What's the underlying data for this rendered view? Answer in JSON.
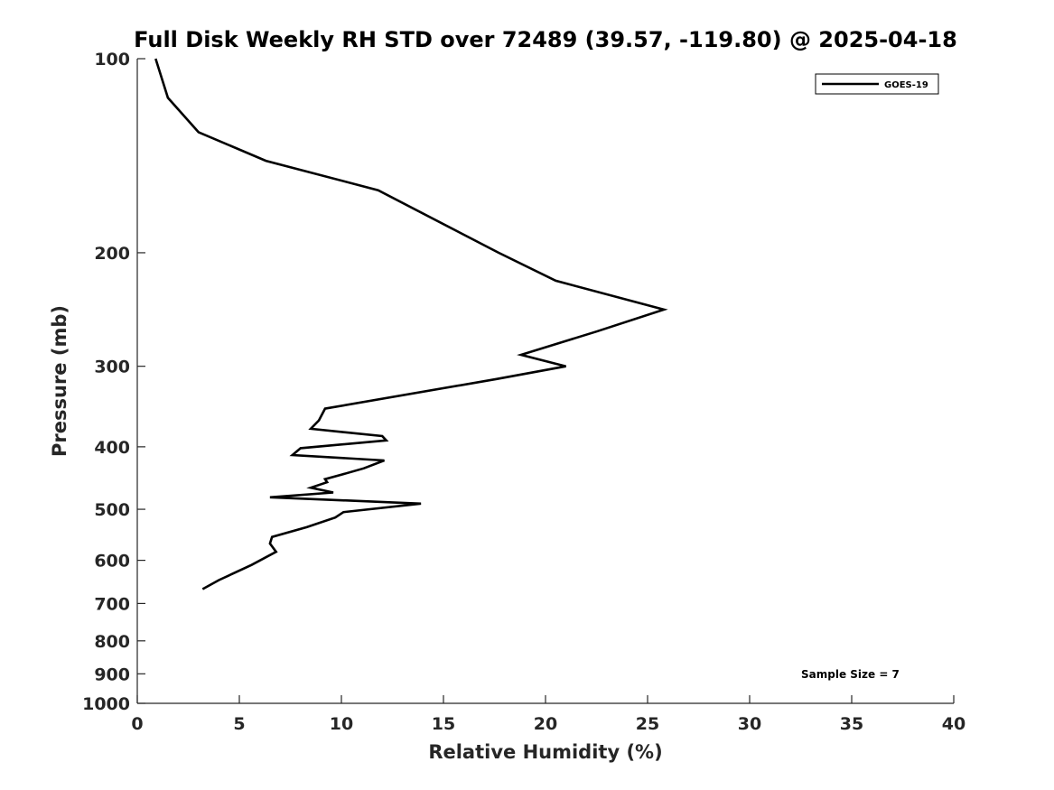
{
  "chart_data": {
    "type": "line",
    "title": "Full Disk Weekly RH STD over 72489 (39.57, -119.80) @ 2025-04-18",
    "xlabel": "Relative Humidity (%)",
    "ylabel": "Pressure (mb)",
    "xlim": [
      0,
      40
    ],
    "ylim": [
      100,
      1000
    ],
    "yscale": "log",
    "yreversed": true,
    "grid": false,
    "x_ticks": [
      0,
      5,
      10,
      15,
      20,
      25,
      30,
      35,
      40
    ],
    "x_tick_labels": [
      "0",
      "5",
      "10",
      "15",
      "20",
      "25",
      "30",
      "35",
      "40"
    ],
    "y_ticks": [
      100,
      200,
      300,
      400,
      500,
      600,
      700,
      800,
      900,
      1000
    ],
    "y_tick_labels": [
      "100",
      "200",
      "300",
      "400",
      "500",
      "600",
      "700",
      "800",
      "900",
      "1000"
    ],
    "legend": {
      "position": "top-right",
      "entries": [
        "GOES-19"
      ]
    },
    "annotation": "Sample Size = 7",
    "series": [
      {
        "name": "GOES-19",
        "color": "#000000",
        "x": [
          0.9,
          1.5,
          3.0,
          6.3,
          11.8,
          17.7,
          20.5,
          25.8,
          22.5,
          18.8,
          21.0,
          17.6,
          9.2,
          8.9,
          8.5,
          12.0,
          12.2,
          8.0,
          7.6,
          12.1,
          11.1,
          10.0,
          9.2,
          9.3,
          8.5,
          9.6,
          6.5,
          13.9,
          10.1,
          9.7,
          8.3,
          6.6,
          6.5,
          6.8,
          5.6,
          4.0,
          3.2
        ],
        "y": [
          100,
          115,
          130,
          144,
          160,
          200,
          221,
          245,
          265,
          288,
          300,
          314,
          349,
          364,
          375,
          385,
          391,
          402,
          412,
          420,
          432,
          442,
          449,
          454,
          463,
          471,
          479,
          490,
          505,
          515,
          533,
          552,
          565,
          582,
          610,
          644,
          665
        ]
      }
    ]
  }
}
